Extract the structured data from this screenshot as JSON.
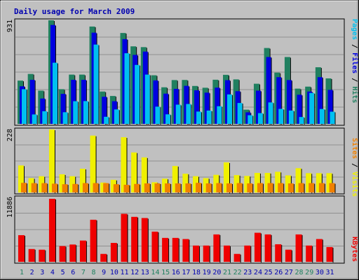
{
  "chart_data": [
    {
      "type": "bar",
      "title": "Daily usage for March 2009",
      "panel": "hits-files-pages",
      "categories": [
        "1",
        "2",
        "3",
        "4",
        "5",
        "6",
        "7",
        "8",
        "9",
        "10",
        "11",
        "12",
        "13",
        "14",
        "15",
        "16",
        "17",
        "18",
        "19",
        "20",
        "21",
        "22",
        "23",
        "24",
        "25",
        "26",
        "27",
        "28",
        "29",
        "30",
        "31"
      ],
      "weekend_days": [
        "1",
        "7",
        "8",
        "14",
        "15",
        "21",
        "22",
        "28",
        "29"
      ],
      "ymax_label": "931",
      "ylim": [
        0,
        931
      ],
      "series": [
        {
          "name": "Hits",
          "color": "#208060",
          "values": [
            389,
            449,
            299,
            931,
            312,
            443,
            443,
            875,
            291,
            251,
            817,
            697,
            690,
            437,
            329,
            394,
            395,
            341,
            325,
            397,
            441,
            400,
            128,
            361,
            682,
            461,
            601,
            317,
            335,
            509,
            409
          ]
        },
        {
          "name": "Files",
          "color": "#0000e0",
          "values": [
            338,
            396,
            228,
            889,
            270,
            396,
            396,
            820,
            244,
            204,
            762,
            620,
            650,
            391,
            272,
            315,
            342,
            302,
            281,
            326,
            393,
            294,
            104,
            299,
            601,
            420,
            394,
            262,
            291,
            420,
            306
          ]
        },
        {
          "name": "Pages",
          "color": "#00c0f0",
          "values": [
            312,
            85,
            114,
            550,
            105,
            204,
            205,
            713,
            64,
            130,
            635,
            530,
            443,
            155,
            86,
            173,
            179,
            111,
            120,
            159,
            265,
            188,
            78,
            97,
            193,
            135,
            120,
            62,
            278,
            134,
            110
          ]
        }
      ]
    },
    {
      "type": "bar",
      "panel": "visits-sites",
      "categories": [
        "1",
        "2",
        "3",
        "4",
        "5",
        "6",
        "7",
        "8",
        "9",
        "10",
        "11",
        "12",
        "13",
        "14",
        "15",
        "16",
        "17",
        "18",
        "19",
        "20",
        "21",
        "22",
        "23",
        "24",
        "25",
        "26",
        "27",
        "28",
        "29",
        "30",
        "31"
      ],
      "ymax_label": "228",
      "ylim": [
        0,
        228
      ],
      "series": [
        {
          "name": "Visits",
          "color": "#f0f000",
          "values": [
            98,
            52,
            59,
            228,
            66,
            59,
            86,
            206,
            36,
            46,
            200,
            145,
            127,
            37,
            50,
            96,
            68,
            59,
            52,
            64,
            109,
            63,
            60,
            71,
            71,
            75,
            62,
            88,
            70,
            70,
            70
          ]
        },
        {
          "name": "Sites",
          "color": "#f08000",
          "values": [
            35,
            34,
            34,
            32,
            30,
            31,
            34,
            34,
            34,
            30,
            28,
            31,
            33,
            33,
            33,
            33,
            33,
            35,
            33,
            34,
            33,
            34,
            33,
            34,
            34,
            34,
            33,
            34,
            34,
            34,
            34
          ]
        }
      ]
    },
    {
      "type": "bar",
      "panel": "kbytes",
      "categories": [
        "1",
        "2",
        "3",
        "4",
        "5",
        "6",
        "7",
        "8",
        "9",
        "10",
        "11",
        "12",
        "13",
        "14",
        "15",
        "16",
        "17",
        "18",
        "19",
        "20",
        "21",
        "22",
        "23",
        "24",
        "25",
        "26",
        "27",
        "28",
        "29",
        "30",
        "31"
      ],
      "ymax_label": "11886",
      "ylim": [
        0,
        11886
      ],
      "series": [
        {
          "name": "KBytes",
          "color": "#f00000",
          "values": [
            5024,
            2410,
            2285,
            11886,
            2967,
            3258,
            4010,
            7936,
            1489,
            3566,
            9050,
            8479,
            8258,
            5691,
            4510,
            4510,
            4293,
            3066,
            3066,
            5165,
            3066,
            1489,
            3066,
            5478,
            5165,
            3308,
            2285,
            5165,
            3066,
            4293,
            2784
          ]
        }
      ]
    }
  ],
  "side_labels": {
    "top": [
      {
        "text": "Pages",
        "color": "#00c0f0"
      },
      {
        "text": " / ",
        "color": "#000000"
      },
      {
        "text": "Files",
        "color": "#0000e0"
      },
      {
        "text": " / ",
        "color": "#000000"
      },
      {
        "text": "Hits",
        "color": "#208060"
      }
    ],
    "middle": [
      {
        "text": "Sites",
        "color": "#f08000"
      },
      {
        "text": " / ",
        "color": "#000000"
      },
      {
        "text": "Visits",
        "color": "#f0f000"
      }
    ],
    "bottom": [
      {
        "text": "KBytes",
        "color": "#f00000"
      }
    ]
  },
  "colors": {
    "background": "#c0c0c0",
    "title": "#0000b0",
    "weekday_label": "#0000b0",
    "weekend_label": "#208060",
    "gridline": "#909090"
  }
}
